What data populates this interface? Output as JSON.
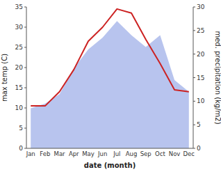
{
  "chart_data": {
    "type": "line",
    "xlabel": "date (month)",
    "ylabel": "max temp (C)",
    "y2label": "med. precipitation (kg/m2)",
    "categories": [
      "Jan",
      "Feb",
      "Mar",
      "Apr",
      "May",
      "Jun",
      "Jul",
      "Aug",
      "Sep",
      "Oct",
      "Nov",
      "Dec"
    ],
    "series": [
      {
        "type": "area",
        "axis": "y2",
        "color": "#b8c4ee",
        "values": [
          8.5,
          9.5,
          11.5,
          17.0,
          21.0,
          23.5,
          27.0,
          24.0,
          21.5,
          24.0,
          14.5,
          12.0
        ]
      },
      {
        "type": "line",
        "color": "#cc2222",
        "values": [
          10.5,
          10.5,
          14.0,
          19.5,
          26.5,
          30.0,
          34.5,
          33.5,
          27.0,
          21.0,
          14.5,
          14.0
        ]
      }
    ],
    "ylim": [
      0,
      35
    ],
    "yticks": [
      0,
      5,
      10,
      15,
      20,
      25,
      30,
      35
    ],
    "y2lim": [
      0,
      30
    ],
    "y2ticks": [
      0,
      5,
      10,
      15,
      20,
      25,
      30
    ],
    "grid": false
  }
}
